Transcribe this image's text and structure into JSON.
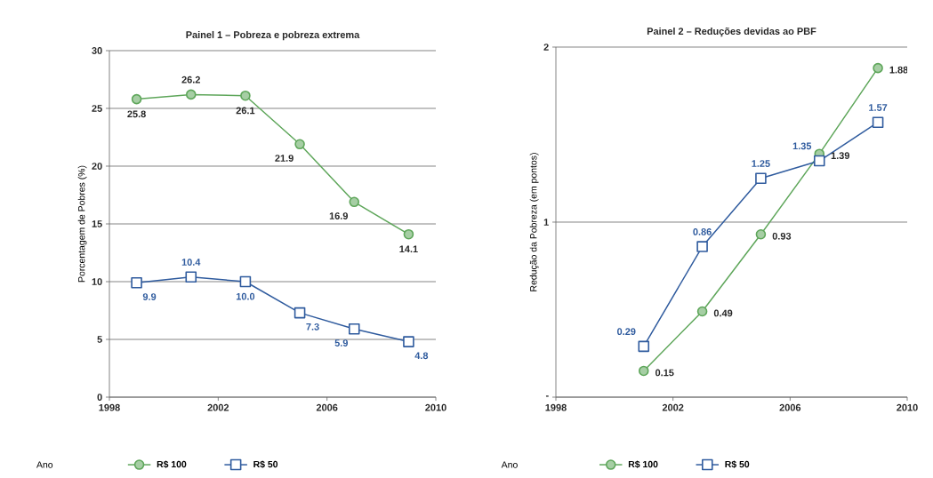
{
  "chart_data": [
    {
      "type": "line",
      "title": "Painel 1 – Pobreza e pobreza extrema",
      "xlabel": "Ano",
      "ylabel": "Porcentagem de Pobres (%)",
      "x": [
        1999,
        2001,
        2003,
        2005,
        2007,
        2009
      ],
      "xlim": [
        1998,
        2010
      ],
      "xticks": [
        1998,
        2002,
        2006,
        2010
      ],
      "ylim": [
        0,
        30
      ],
      "yticks": [
        0,
        5,
        10,
        15,
        20,
        25,
        30
      ],
      "grid": "y",
      "legend": "bottom",
      "series": [
        {
          "name": "R$ 100",
          "color": "#5ea65a",
          "marker": "circle",
          "values": [
            25.8,
            26.2,
            26.1,
            21.9,
            16.9,
            14.1
          ],
          "value_labels": [
            "25.8",
            "26.2",
            "26.1",
            "21.9",
            "16.9",
            "14.1"
          ]
        },
        {
          "name": "R$ 50",
          "color": "#2f5b9e",
          "marker": "square",
          "values": [
            9.9,
            10.4,
            10.0,
            7.3,
            5.9,
            4.8
          ],
          "value_labels": [
            "9.9",
            "10.4",
            "10.0",
            "7.3",
            "5.9",
            "4.8"
          ]
        }
      ]
    },
    {
      "type": "line",
      "title": "Painel 2 – Reduções devidas ao PBF",
      "xlabel": "Ano",
      "ylabel": "Redução da Pobreza (em pontos)",
      "x": [
        2001,
        2003,
        2005,
        2007,
        2009
      ],
      "xlim": [
        1998,
        2010
      ],
      "xticks": [
        1998,
        2002,
        2006,
        2010
      ],
      "ylim": [
        0,
        2
      ],
      "yticks": [
        {
          "value": 0,
          "label": "-"
        },
        1,
        2
      ],
      "grid": "y",
      "legend": "bottom",
      "data_labels": true,
      "series": [
        {
          "name": "R$ 100",
          "color": "#5ea65a",
          "marker": "circle",
          "values": [
            0.15,
            0.49,
            0.93,
            1.39,
            1.88
          ]
        },
        {
          "name": "R$ 50",
          "color": "#2f5b9e",
          "marker": "square",
          "values": [
            0.29,
            0.86,
            1.25,
            1.35,
            1.57
          ]
        }
      ]
    }
  ]
}
